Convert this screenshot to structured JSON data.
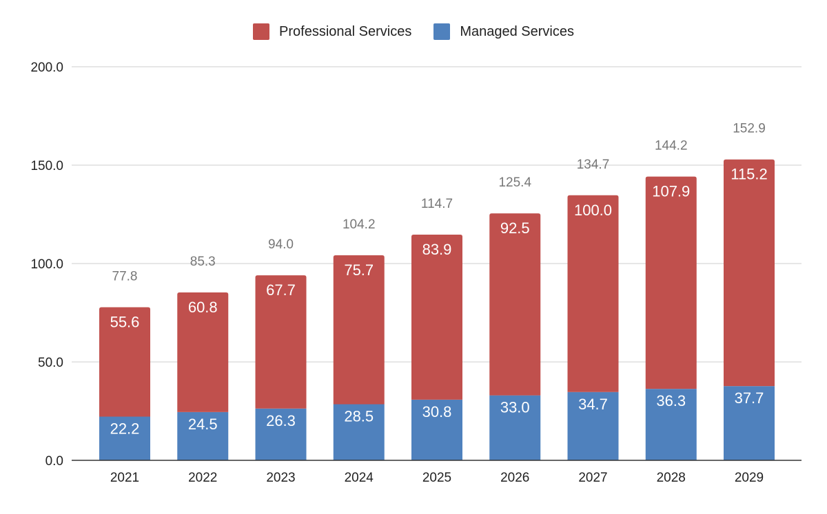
{
  "legend": [
    {
      "label": "Professional Services",
      "color": "#c0504d"
    },
    {
      "label": "Managed Services",
      "color": "#4f81bd"
    }
  ],
  "chart_data": {
    "type": "bar",
    "stacked": true,
    "categories": [
      "2021",
      "2022",
      "2023",
      "2024",
      "2025",
      "2026",
      "2027",
      "2028",
      "2029"
    ],
    "series": [
      {
        "name": "Managed Services",
        "color": "#4f81bd",
        "values": [
          22.2,
          24.5,
          26.3,
          28.5,
          30.8,
          33.0,
          34.7,
          36.3,
          37.7
        ]
      },
      {
        "name": "Professional Services",
        "color": "#c0504d",
        "values": [
          55.6,
          60.8,
          67.7,
          75.7,
          83.9,
          92.5,
          100.0,
          107.9,
          115.2
        ]
      }
    ],
    "totals": [
      77.8,
      85.3,
      94.0,
      104.2,
      114.7,
      125.4,
      134.7,
      144.2,
      152.9
    ],
    "ylim": [
      0,
      200
    ],
    "yticks": [
      "0.0",
      "50.0",
      "100.0",
      "150.0",
      "200.0"
    ],
    "grid": true,
    "legend_position": "top"
  }
}
